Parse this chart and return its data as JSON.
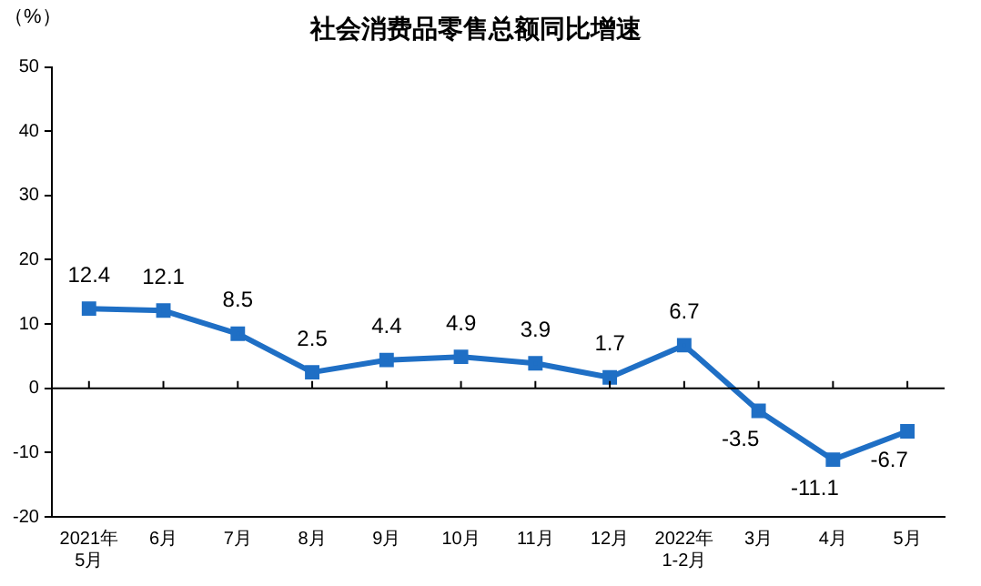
{
  "chart_data": {
    "type": "line",
    "title": "社会消费品零售总额同比增速",
    "ylabel": "（%）",
    "categories": [
      "2021年\n5月",
      "6月",
      "7月",
      "8月",
      "9月",
      "10月",
      "11月",
      "12月",
      "2022年\n1-2月",
      "3月",
      "4月",
      "5月"
    ],
    "series": [
      {
        "color": "#1f6fc5",
        "values": [
          12.4,
          12.1,
          8.5,
          2.5,
          4.4,
          4.9,
          3.9,
          1.7,
          6.7,
          -3.5,
          -11.1,
          -6.7
        ]
      }
    ],
    "ylim": [
      -20,
      50
    ],
    "yticks": [
      -20,
      -10,
      0,
      10,
      20,
      30,
      40,
      50
    ],
    "ref_lines": [
      {
        "axis": "y",
        "value": 0,
        "color": "#000000"
      }
    ],
    "grid": false,
    "legend": false,
    "marker": "square",
    "line_style": "solid",
    "data_labels": true
  }
}
